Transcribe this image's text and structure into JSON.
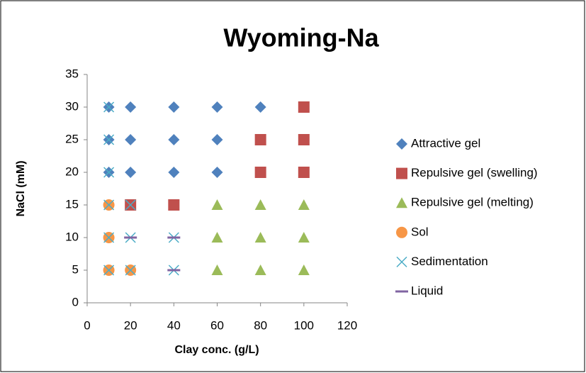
{
  "chart_data": {
    "type": "scatter",
    "title": "Wyoming-Na",
    "x_label": "Clay conc. (g/L)",
    "y_label": "NaCl (mM)",
    "xlim": [
      0,
      120
    ],
    "xticks": [
      0,
      20,
      40,
      60,
      80,
      100,
      120
    ],
    "ylim": [
      0,
      35
    ],
    "yticks": [
      0,
      5,
      10,
      15,
      20,
      25,
      30,
      35
    ],
    "legend": "right",
    "series": [
      {
        "name": "Attractive gel",
        "color": "#4f81bd",
        "marker": "diamond",
        "x": [
          10,
          20,
          40,
          60,
          80,
          10,
          20,
          40,
          60,
          10,
          20,
          40,
          60
        ],
        "values": [
          30,
          30,
          30,
          30,
          30,
          25,
          25,
          25,
          25,
          20,
          20,
          20,
          20
        ]
      },
      {
        "name": "Repulsive gel (swelling)",
        "color": "#c0504d",
        "marker": "square",
        "x": [
          100,
          80,
          100,
          80,
          100,
          20,
          40
        ],
        "values": [
          30,
          25,
          25,
          20,
          20,
          15,
          15
        ]
      },
      {
        "name": "Repulsive gel (melting)",
        "color": "#9bbb59",
        "marker": "triangle",
        "x": [
          60,
          80,
          100,
          60,
          80,
          100,
          60,
          80,
          100
        ],
        "values": [
          15,
          15,
          15,
          10,
          10,
          10,
          5,
          5,
          5
        ]
      },
      {
        "name": "Sol",
        "color": "#f79646",
        "marker": "circle",
        "x": [
          10,
          10,
          10,
          20
        ],
        "values": [
          15,
          10,
          5,
          5
        ]
      },
      {
        "name": "Sedimentation",
        "color": "#4bacc6",
        "marker": "cross",
        "x": [
          10,
          10,
          10,
          10,
          20,
          10,
          20,
          40,
          10,
          20,
          40
        ],
        "values": [
          30,
          25,
          20,
          15,
          15,
          10,
          10,
          10,
          5,
          5,
          5
        ]
      },
      {
        "name": "Liquid",
        "color": "#8064a2",
        "marker": "dash",
        "x": [
          20,
          40,
          40
        ],
        "values": [
          10,
          10,
          5
        ]
      }
    ]
  }
}
